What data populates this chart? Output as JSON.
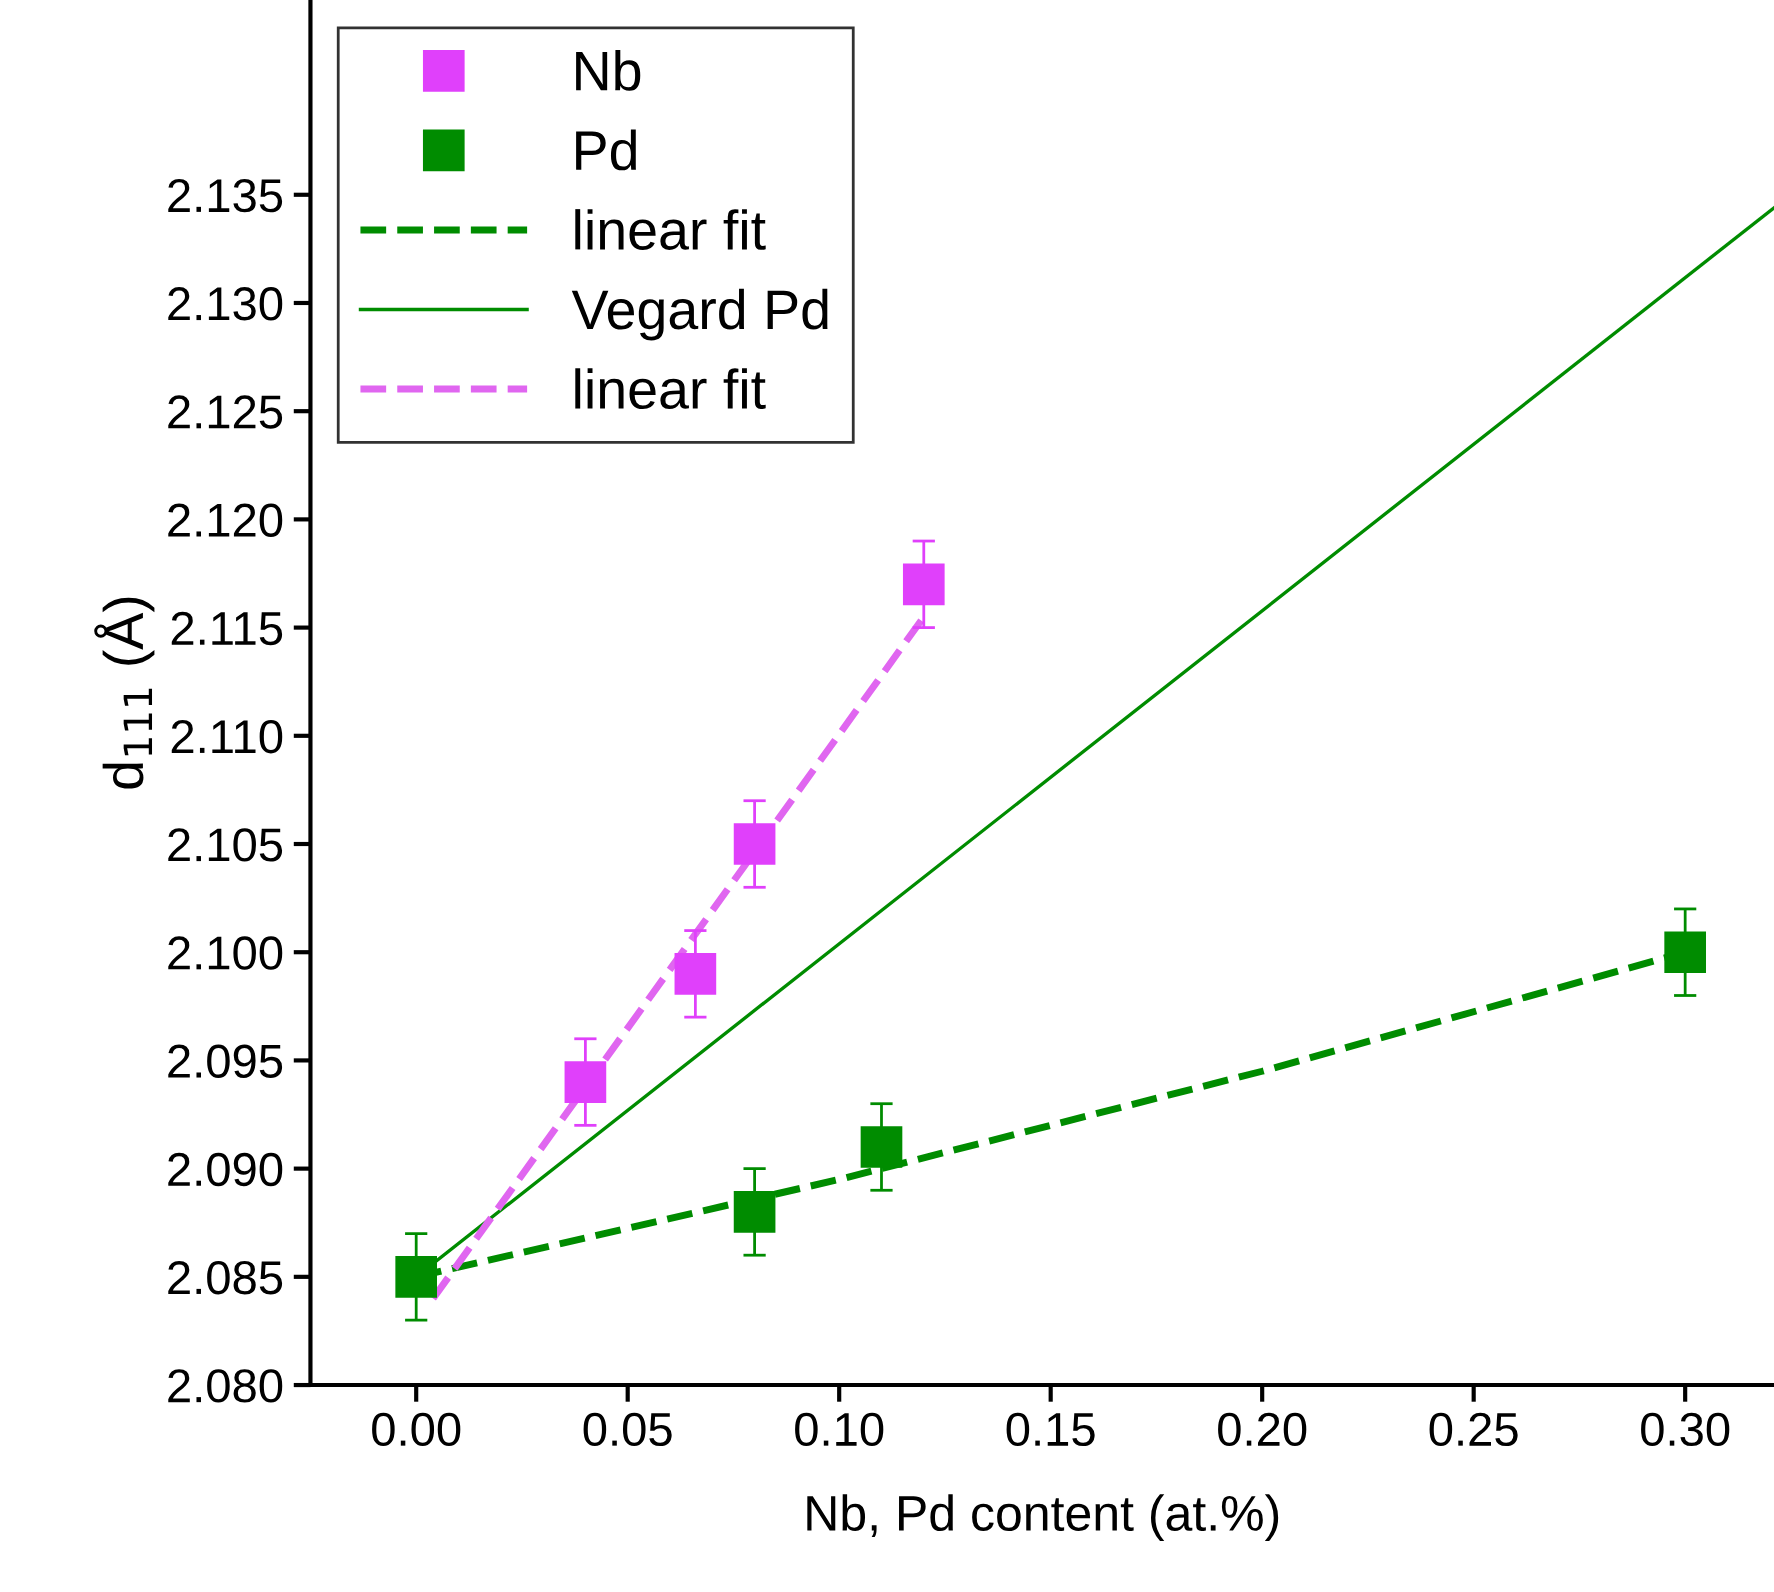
{
  "chart_data": {
    "type": "scatter",
    "xlabel": "Nb, Pd content (at.%)",
    "ylabel": "d$_{111}$ (Å)",
    "xlim": [
      -0.025,
      0.321
    ],
    "ylim": [
      2.08,
      2.144
    ],
    "xticks": [
      {
        "value": 0,
        "label": "0.00"
      },
      {
        "value": 0.05,
        "label": "0.05"
      },
      {
        "value": 0.1,
        "label": "0.10"
      },
      {
        "value": 0.15,
        "label": "0.15"
      },
      {
        "value": 0.2,
        "label": "0.20"
      },
      {
        "value": 0.25,
        "label": "0.25"
      },
      {
        "value": 0.3,
        "label": "0.30"
      }
    ],
    "yticks": [
      {
        "value": 2.08,
        "label": "2.080"
      },
      {
        "value": 2.085,
        "label": "2.085"
      },
      {
        "value": 2.09,
        "label": "2.090"
      },
      {
        "value": 2.095,
        "label": "2.095"
      },
      {
        "value": 2.1,
        "label": "2.100"
      },
      {
        "value": 2.105,
        "label": "2.105"
      },
      {
        "value": 2.11,
        "label": "2.110"
      },
      {
        "value": 2.115,
        "label": "2.115"
      },
      {
        "value": 2.12,
        "label": "2.120"
      },
      {
        "value": 2.125,
        "label": "2.125"
      },
      {
        "value": 2.13,
        "label": "2.130"
      },
      {
        "value": 2.135,
        "label": "2.135"
      }
    ],
    "grid": false,
    "legend": "top left",
    "series": [
      {
        "name": "Nb",
        "marker": "square",
        "color": "#e040fb",
        "x": [
          0.04,
          0.066,
          0.08,
          0.12
        ],
        "values": [
          2.094,
          2.099,
          2.105,
          2.117
        ],
        "errors": [
          0.002,
          0.002,
          0.002,
          0.002
        ]
      },
      {
        "name": "Pd",
        "marker": "square",
        "color": "#008c00",
        "x": [
          0,
          0.08,
          0.11,
          0.3
        ],
        "values": [
          2.085,
          2.088,
          2.091,
          2.1
        ],
        "errors": [
          0.002,
          0.002,
          0.002,
          0.002
        ]
      },
      {
        "name": "linear fit",
        "type": "line",
        "line_style": "dashed",
        "color": "#008c00",
        "x": [
          0,
          0.1,
          0.2,
          0.3
        ],
        "values": [
          2.085,
          2.0895,
          2.0945,
          2.1
        ]
      },
      {
        "name": "Vegard Pd",
        "type": "line",
        "line_style": "solid",
        "color": "#008c00",
        "x": [
          0,
          0.321
        ],
        "values": [
          2.085,
          2.1344
        ]
      },
      {
        "name": "linear fit",
        "type": "line",
        "line_style": "dashed",
        "color": "#e066f0",
        "x": [
          0.004,
          0.12
        ],
        "values": [
          2.084,
          2.1155
        ]
      }
    ]
  }
}
